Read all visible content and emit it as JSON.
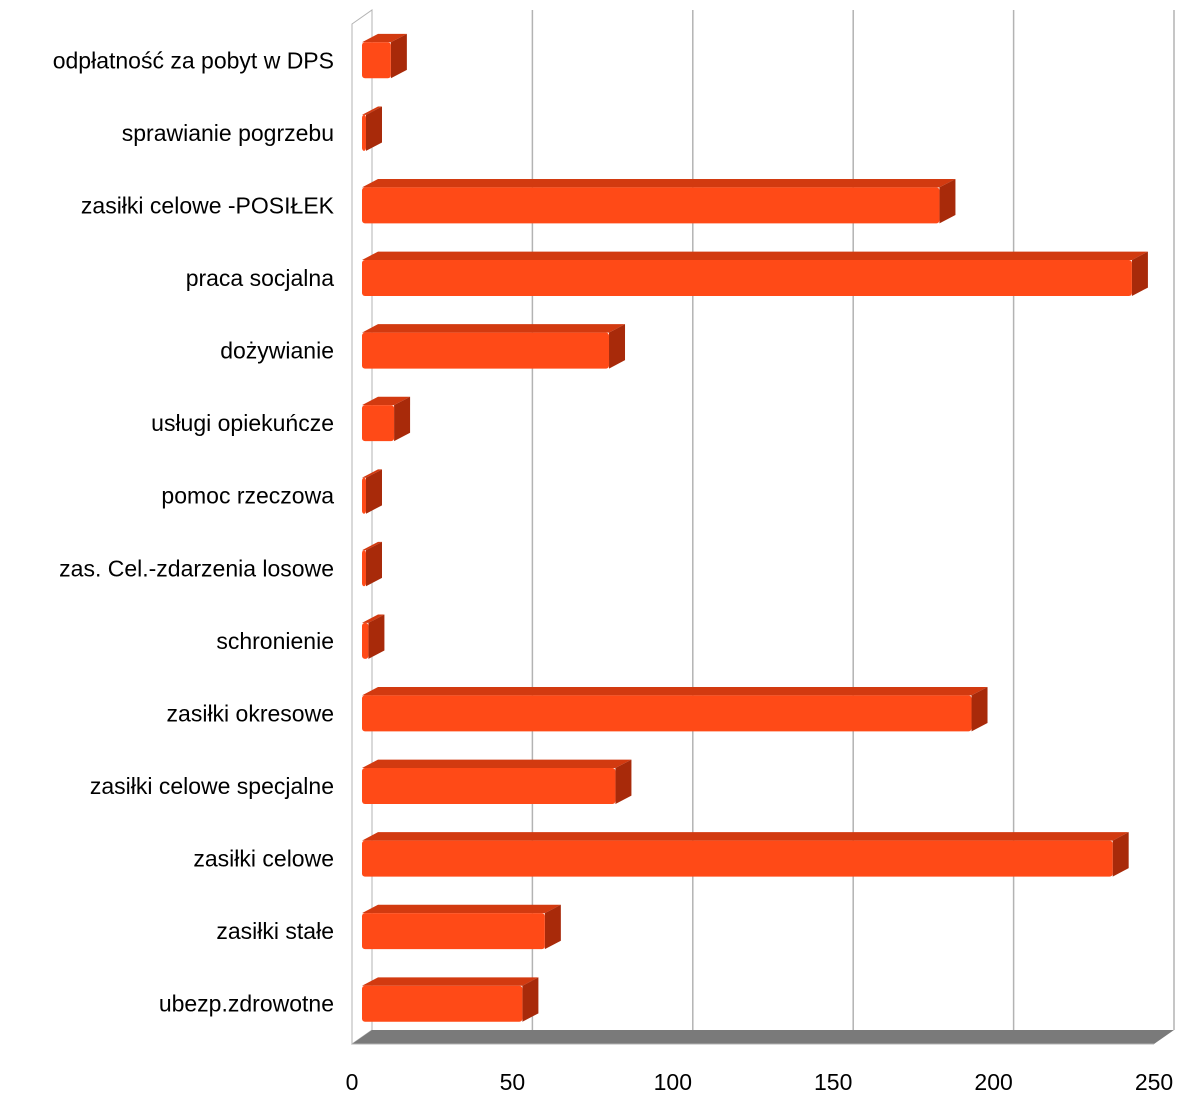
{
  "chart_data": {
    "type": "bar",
    "orientation": "horizontal",
    "style": "3d",
    "title": "",
    "xlabel": "",
    "ylabel": "",
    "categories": [
      "odpłatność za pobyt w DPS",
      "sprawianie pogrzebu",
      "zasiłki celowe -POSIŁEK",
      "praca socjalna",
      "dożywianie",
      "usługi opiekuńcze",
      "pomoc rzeczowa",
      "zas. Cel.-zdarzenia losowe",
      "schronienie",
      "zasiłki okresowe",
      "zasiłki celowe specjalne",
      "zasiłki celowe",
      "zasiłki stałe",
      "ubezp.zdrowotne"
    ],
    "values": [
      9,
      0,
      180,
      240,
      77,
      10,
      0,
      0,
      2,
      190,
      79,
      234,
      57,
      50
    ],
    "xlim": [
      0,
      250
    ],
    "xticks": [
      "0",
      "50",
      "100",
      "150",
      "200",
      "250"
    ],
    "grid": "vertical",
    "legend": "none",
    "colors": {
      "bar_front": "#ff4a17",
      "bar_top": "#d23a10",
      "bar_side": "#a82a0a",
      "grid": "#b3b3b3",
      "floor": "#7a7a7a"
    }
  }
}
